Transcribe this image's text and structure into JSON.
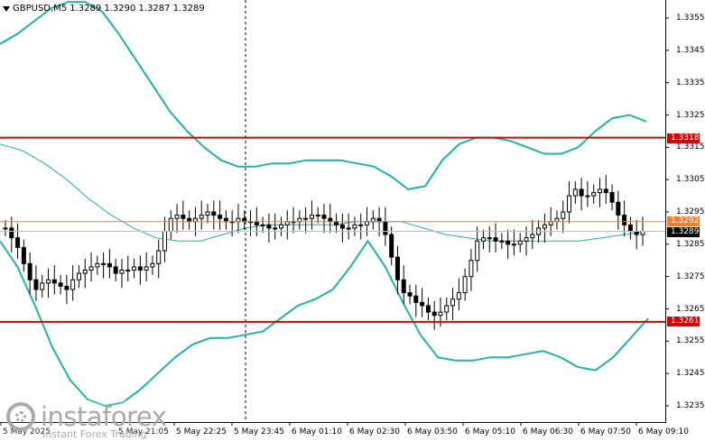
{
  "window": {
    "symbol": "GBPUSD,M5",
    "ohlc": "1.3289 1.3290 1.3287 1.3289"
  },
  "price_axis": {
    "ticks": [
      "1.3355",
      "1.3345",
      "1.3335",
      "1.3325",
      "1.3315",
      "1.3305",
      "1.3295",
      "1.3285",
      "1.3275",
      "1.3265",
      "1.3255",
      "1.3245",
      "1.3235"
    ],
    "min": 1.3229,
    "max": 1.336
  },
  "time_axis": {
    "labels": [
      "5 May 2025",
      "5 May 21:05",
      "5 May 22:25",
      "5 May 23:45",
      "6 May 01:10",
      "6 May 02:30",
      "6 May 03:50",
      "6 May 05:10",
      "6 May 06:30",
      "6 May 07:50",
      "6 May 09:10"
    ]
  },
  "levels": {
    "resistance": {
      "value": "1.3318",
      "color": "#d60000"
    },
    "support": {
      "value": "1.3261",
      "color": "#d60000"
    },
    "bid_line": {
      "value": "1.3292",
      "color": "#f07f32"
    },
    "current": {
      "value": "1.3289",
      "color": "#000000"
    }
  },
  "colors": {
    "bollinger": "#1fb3a5",
    "candle": "#000000"
  },
  "logo": {
    "brand": "instaforex",
    "tagline": "Instant Forex Trading",
    "icon": "instaforex-logo-icon"
  },
  "chart_data": {
    "type": "candlestick",
    "symbol": "GBPUSD,M5",
    "ylim": [
      1.3229,
      1.336
    ],
    "ohlc_last": [
      1.3289,
      1.329,
      1.3287,
      1.3289
    ],
    "horizontal_lines": [
      1.3318,
      1.3261,
      1.3292,
      1.3289
    ],
    "close_series": [
      1.329,
      1.3287,
      1.3284,
      1.3279,
      1.3274,
      1.3271,
      1.3273,
      1.3274,
      1.3273,
      1.3272,
      1.3271,
      1.3274,
      1.3276,
      1.3277,
      1.3278,
      1.3279,
      1.3279,
      1.3278,
      1.3276,
      1.3277,
      1.3277,
      1.3278,
      1.3277,
      1.3278,
      1.3279,
      1.3283,
      1.3289,
      1.3293,
      1.3294,
      1.3293,
      1.3292,
      1.3293,
      1.3294,
      1.3295,
      1.3294,
      1.3293,
      1.3292,
      1.3292,
      1.3293,
      1.3292,
      1.3292,
      1.3291,
      1.3291,
      1.329,
      1.329,
      1.3291,
      1.3292,
      1.3292,
      1.3293,
      1.3293,
      1.3294,
      1.3294,
      1.3293,
      1.3292,
      1.3291,
      1.329,
      1.329,
      1.3291,
      1.3291,
      1.3292,
      1.3293,
      1.3292,
      1.3288,
      1.3281,
      1.3274,
      1.327,
      1.3269,
      1.3267,
      1.3266,
      1.3264,
      1.3263,
      1.3264,
      1.3266,
      1.3268,
      1.327,
      1.3275,
      1.328,
      1.3286,
      1.3287,
      1.3287,
      1.3286,
      1.3286,
      1.3285,
      1.3285,
      1.3286,
      1.3287,
      1.3288,
      1.329,
      1.3291,
      1.3292,
      1.3293,
      1.3295,
      1.33,
      1.3302,
      1.33,
      1.33,
      1.3301,
      1.3302,
      1.3301,
      1.3298,
      1.3294,
      1.3291,
      1.3289,
      1.3288,
      1.3289
    ],
    "bollinger_upper": [
      1.3347,
      1.335,
      1.3354,
      1.3358,
      1.336,
      1.336,
      1.3357,
      1.335,
      1.3342,
      1.3334,
      1.3326,
      1.332,
      1.3315,
      1.3311,
      1.3309,
      1.3309,
      1.331,
      1.331,
      1.3311,
      1.3311,
      1.3311,
      1.331,
      1.3309,
      1.3306,
      1.3302,
      1.3303,
      1.3311,
      1.3316,
      1.3318,
      1.3318,
      1.3317,
      1.3315,
      1.3313,
      1.3313,
      1.3315,
      1.332,
      1.3324,
      1.3325,
      1.3323
    ],
    "bollinger_middle": [
      1.3316,
      1.3314,
      1.331,
      1.3305,
      1.3299,
      1.3294,
      1.329,
      1.3287,
      1.3286,
      1.3286,
      1.3288,
      1.329,
      1.3291,
      1.3291,
      1.3291,
      1.3291,
      1.3292,
      1.3292,
      1.3292,
      1.329,
      1.3288,
      1.3287,
      1.3286,
      1.3286,
      1.3286,
      1.3286,
      1.3286,
      1.3287,
      1.3288,
      1.3289
    ],
    "bollinger_lower": [
      1.3286,
      1.3278,
      1.3266,
      1.3253,
      1.3243,
      1.3237,
      1.3235,
      1.3236,
      1.324,
      1.3245,
      1.325,
      1.3254,
      1.3256,
      1.3256,
      1.3257,
      1.3258,
      1.3262,
      1.3266,
      1.3268,
      1.3271,
      1.3278,
      1.3286,
      1.3278,
      1.3267,
      1.3257,
      1.325,
      1.3249,
      1.3249,
      1.325,
      1.325,
      1.3251,
      1.3252,
      1.325,
      1.3247,
      1.3246,
      1.325,
      1.3256,
      1.3262
    ]
  }
}
